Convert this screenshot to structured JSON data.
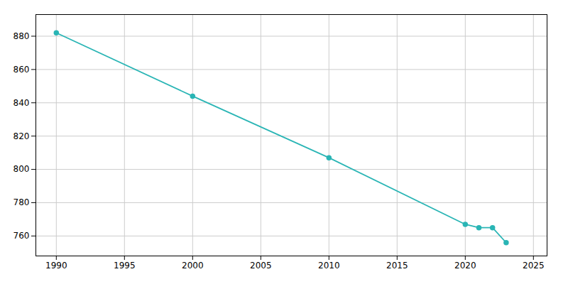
{
  "chart_data": {
    "type": "line",
    "x": [
      1990,
      2000,
      2010,
      2020,
      2021,
      2022,
      2023
    ],
    "values": [
      882,
      844,
      807,
      767,
      765,
      765,
      756
    ],
    "color": "#2ab5b5",
    "marker": "circle",
    "xlim": [
      1988.5,
      2026
    ],
    "ylim": [
      748,
      893
    ],
    "xticks": [
      1990,
      1995,
      2000,
      2005,
      2010,
      2015,
      2020,
      2025
    ],
    "yticks": [
      760,
      780,
      800,
      820,
      840,
      860,
      880
    ],
    "grid": true
  }
}
